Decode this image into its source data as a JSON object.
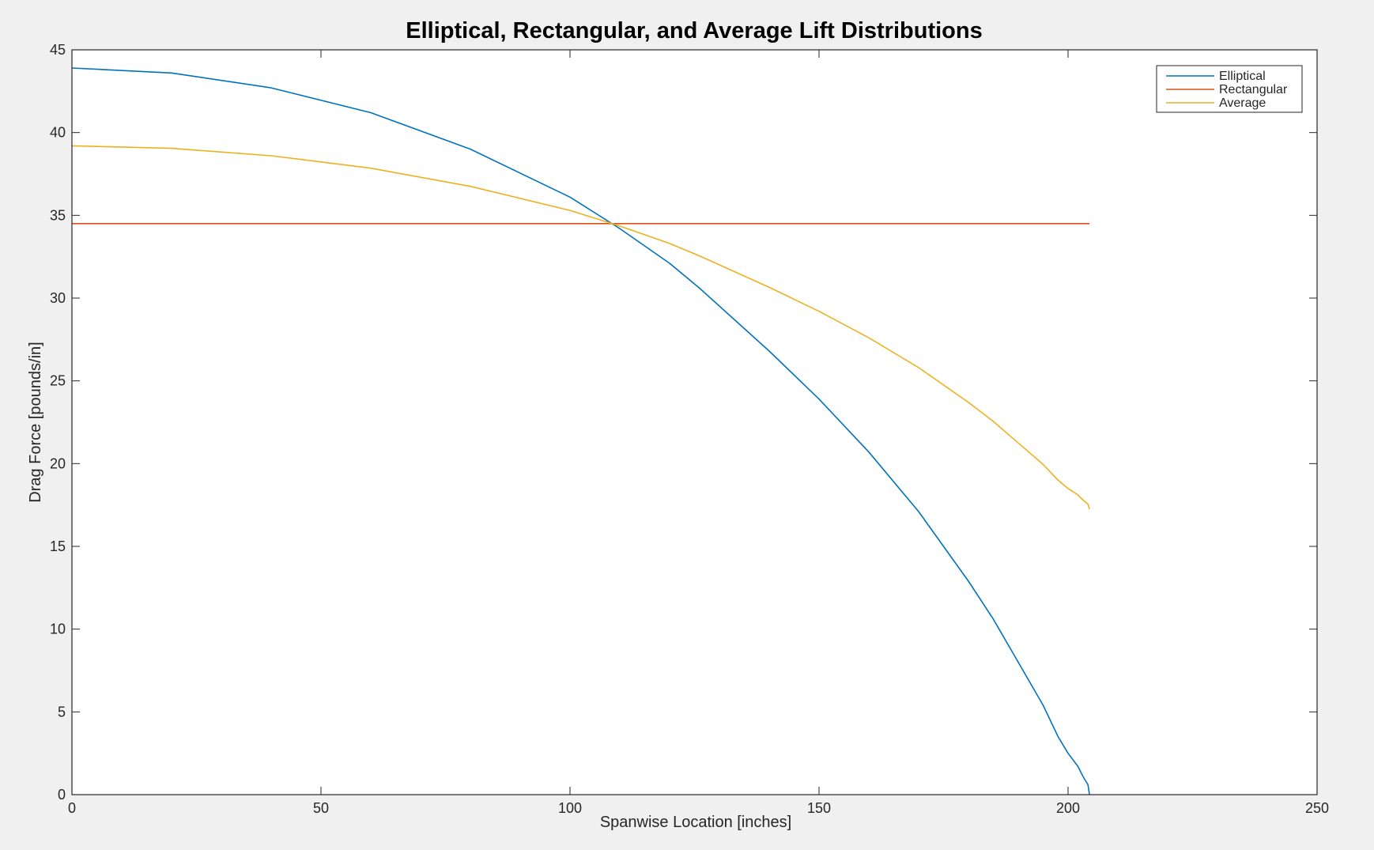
{
  "chart_data": {
    "type": "line",
    "title": "Elliptical, Rectangular, and Average Lift Distributions",
    "xlabel": "Spanwise Location [inches]",
    "ylabel": "Drag Force [pounds/in]",
    "xlim": [
      0,
      250
    ],
    "ylim": [
      0,
      45
    ],
    "xticks": [
      0,
      50,
      100,
      150,
      200,
      250
    ],
    "yticks": [
      0,
      5,
      10,
      15,
      20,
      25,
      30,
      35,
      40,
      45
    ],
    "grid": false,
    "legend_position": "top-right",
    "series": [
      {
        "name": "Elliptical",
        "color": "#0072bd",
        "x": [
          0,
          20,
          40,
          60,
          80,
          100,
          110,
          120,
          126,
          140,
          150,
          160,
          170,
          180,
          185,
          190,
          195,
          198,
          200,
          202,
          203,
          204,
          204.3
        ],
        "y": [
          43.9,
          43.6,
          42.7,
          41.2,
          39.0,
          36.1,
          34.2,
          32.1,
          30.6,
          26.8,
          23.9,
          20.7,
          17.1,
          12.9,
          10.6,
          8.0,
          5.4,
          3.5,
          2.5,
          1.7,
          1.1,
          0.6,
          0
        ]
      },
      {
        "name": "Rectangular",
        "color": "#d95319",
        "x": [
          0,
          204.3
        ],
        "y": [
          34.5,
          34.5
        ]
      },
      {
        "name": "Average",
        "color": "#edb120",
        "x": [
          0,
          20,
          40,
          60,
          80,
          100,
          110,
          120,
          126,
          140,
          150,
          160,
          170,
          180,
          185,
          190,
          195,
          198,
          200,
          202,
          203,
          204,
          204.3
        ],
        "y": [
          39.2,
          39.05,
          38.6,
          37.85,
          36.75,
          35.3,
          34.35,
          33.3,
          32.55,
          30.65,
          29.2,
          27.6,
          25.8,
          23.7,
          22.55,
          21.25,
          19.95,
          19.0,
          18.5,
          18.1,
          17.8,
          17.55,
          17.25
        ]
      }
    ]
  }
}
